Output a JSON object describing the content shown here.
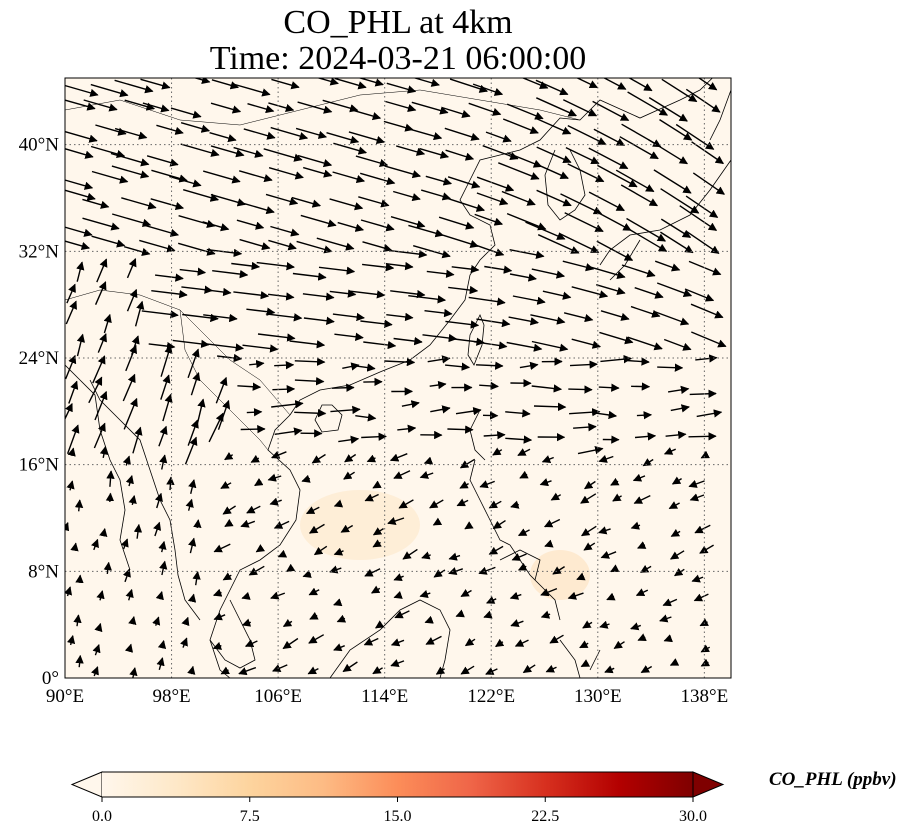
{
  "title": {
    "line1": "CO_PHL at 4km",
    "line2": "Time: 2024-03-21 06:00:00"
  },
  "map": {
    "lon_range": [
      90,
      140
    ],
    "lat_range": [
      0,
      45
    ],
    "x_ticks": [
      {
        "value": 90,
        "label": "90°E"
      },
      {
        "value": 98,
        "label": "98°E"
      },
      {
        "value": 106,
        "label": "106°E"
      },
      {
        "value": 114,
        "label": "114°E"
      },
      {
        "value": 122,
        "label": "122°E"
      },
      {
        "value": 130,
        "label": "130°E"
      },
      {
        "value": 138,
        "label": "138°E"
      }
    ],
    "y_ticks": [
      {
        "value": 0,
        "label": "0°"
      },
      {
        "value": 8,
        "label": "8°N"
      },
      {
        "value": 16,
        "label": "16°N"
      },
      {
        "value": 24,
        "label": "24°N"
      },
      {
        "value": 32,
        "label": "32°N"
      },
      {
        "value": 40,
        "label": "40°N"
      }
    ],
    "grid": "dotted",
    "background_color": "#fff7ec",
    "coastline_color": "#000000",
    "arrow_color": "#000000",
    "wind_field": "westerly to north-westerly flow north of about 20°N; weak easterly flow over the South China Sea and Philippines"
  },
  "colorbar": {
    "title": "CO_PHL (ppbv)",
    "colormap": "OrRd",
    "min": 0.0,
    "max": 30.0,
    "extend": "both",
    "ticks": [
      {
        "value": 0.0,
        "label": "0.0"
      },
      {
        "value": 7.5,
        "label": "7.5"
      },
      {
        "value": 15.0,
        "label": "15.0"
      },
      {
        "value": 22.5,
        "label": "22.5"
      },
      {
        "value": 30.0,
        "label": "30.0"
      }
    ],
    "colors": [
      "#fff7ec",
      "#fee8c8",
      "#fdd49e",
      "#fdbb84",
      "#fc8d59",
      "#ef6548",
      "#d7301f",
      "#b30000",
      "#7f0000"
    ]
  }
}
